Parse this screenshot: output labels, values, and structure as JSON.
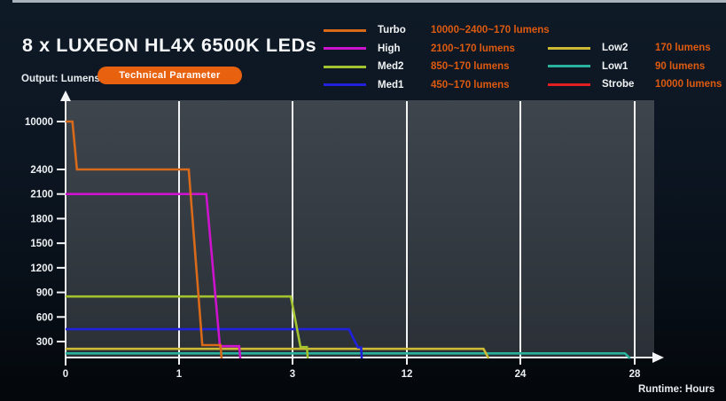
{
  "page": {
    "title": "8 x LUXEON HL4X 6500K LEDs",
    "tech_button_label": "Technical Parameter",
    "y_axis_label": "Output: Lumens",
    "x_axis_label": "Runtime: Hours"
  },
  "colors": {
    "accent_orange": "#e8610e",
    "legend_value_text": "#de5a10",
    "axis_and_grid": "#f2f4f6",
    "plot_bg_top": "#3e454d",
    "plot_bg_bottom": "#2a3036",
    "page_bg_top": "#0e1a26",
    "page_bg_bottom": "#04070b"
  },
  "chart_data": {
    "type": "line",
    "title": "8 x LUXEON HL4X 6500K LEDs",
    "xlabel": "Runtime: Hours",
    "ylabel": "Output: Lumens",
    "x_ticks": [
      0,
      1,
      3,
      12,
      24,
      28
    ],
    "y_ticks": [
      300,
      600,
      900,
      1200,
      1500,
      1800,
      2100,
      2400,
      10000
    ],
    "x_scale_note": "non-linear: tick marks 0,1,3,12,24,28 are equally spaced",
    "y_scale_note": "non-linear: 300-lumen steps up to 2400, compressed jump to 10000",
    "grid": "vertical gridlines at each x tick except 0",
    "legend_position": "top, two columns",
    "series": [
      {
        "mode": "Turbo",
        "color": "#d96a19",
        "output_label": "10000~2400~170 lumens",
        "points_hours_lumens": [
          [
            0,
            10000
          ],
          [
            0.06,
            10000
          ],
          [
            0.1,
            2400
          ],
          [
            1.17,
            2400
          ],
          [
            1.41,
            170
          ],
          [
            1.73,
            170
          ],
          [
            1.75,
            0
          ]
        ]
      },
      {
        "mode": "High",
        "color": "#ce13ce",
        "output_label": "2100~170 lumens",
        "points_hours_lumens": [
          [
            0,
            2100
          ],
          [
            1.48,
            2100
          ],
          [
            1.72,
            170
          ],
          [
            2.06,
            170
          ],
          [
            2.08,
            0
          ]
        ]
      },
      {
        "mode": "Med2",
        "color": "#a2c32f",
        "output_label": "850~170 lumens",
        "points_hours_lumens": [
          [
            0,
            850
          ],
          [
            2.97,
            850
          ],
          [
            3.63,
            170
          ],
          [
            4.13,
            170
          ],
          [
            4.2,
            0
          ]
        ]
      },
      {
        "mode": "Med1",
        "color": "#2121dc",
        "output_label": "450~170 lumens",
        "points_hours_lumens": [
          [
            0,
            450
          ],
          [
            7.43,
            450
          ],
          [
            8.15,
            170
          ],
          [
            8.4,
            170
          ],
          [
            8.45,
            0
          ]
        ]
      },
      {
        "mode": "Low2",
        "color": "#ccba34",
        "output_label": "170 lumens",
        "points_hours_lumens": [
          [
            0,
            170
          ],
          [
            20.1,
            170
          ],
          [
            20.65,
            0
          ]
        ]
      },
      {
        "mode": "Low1",
        "color": "#29b19b",
        "output_label": "90 lumens",
        "points_hours_lumens": [
          [
            0,
            90
          ],
          [
            27.66,
            90
          ],
          [
            27.84,
            0
          ]
        ]
      },
      {
        "mode": "Strobe",
        "color": "#e02020",
        "output_label": "10000 lumens",
        "points_hours_lumens": []
      }
    ],
    "legend": {
      "left_column_modes": [
        "Turbo",
        "High",
        "Med2",
        "Med1"
      ],
      "right_column_modes": [
        "Low2",
        "Low1",
        "Strobe"
      ]
    }
  }
}
